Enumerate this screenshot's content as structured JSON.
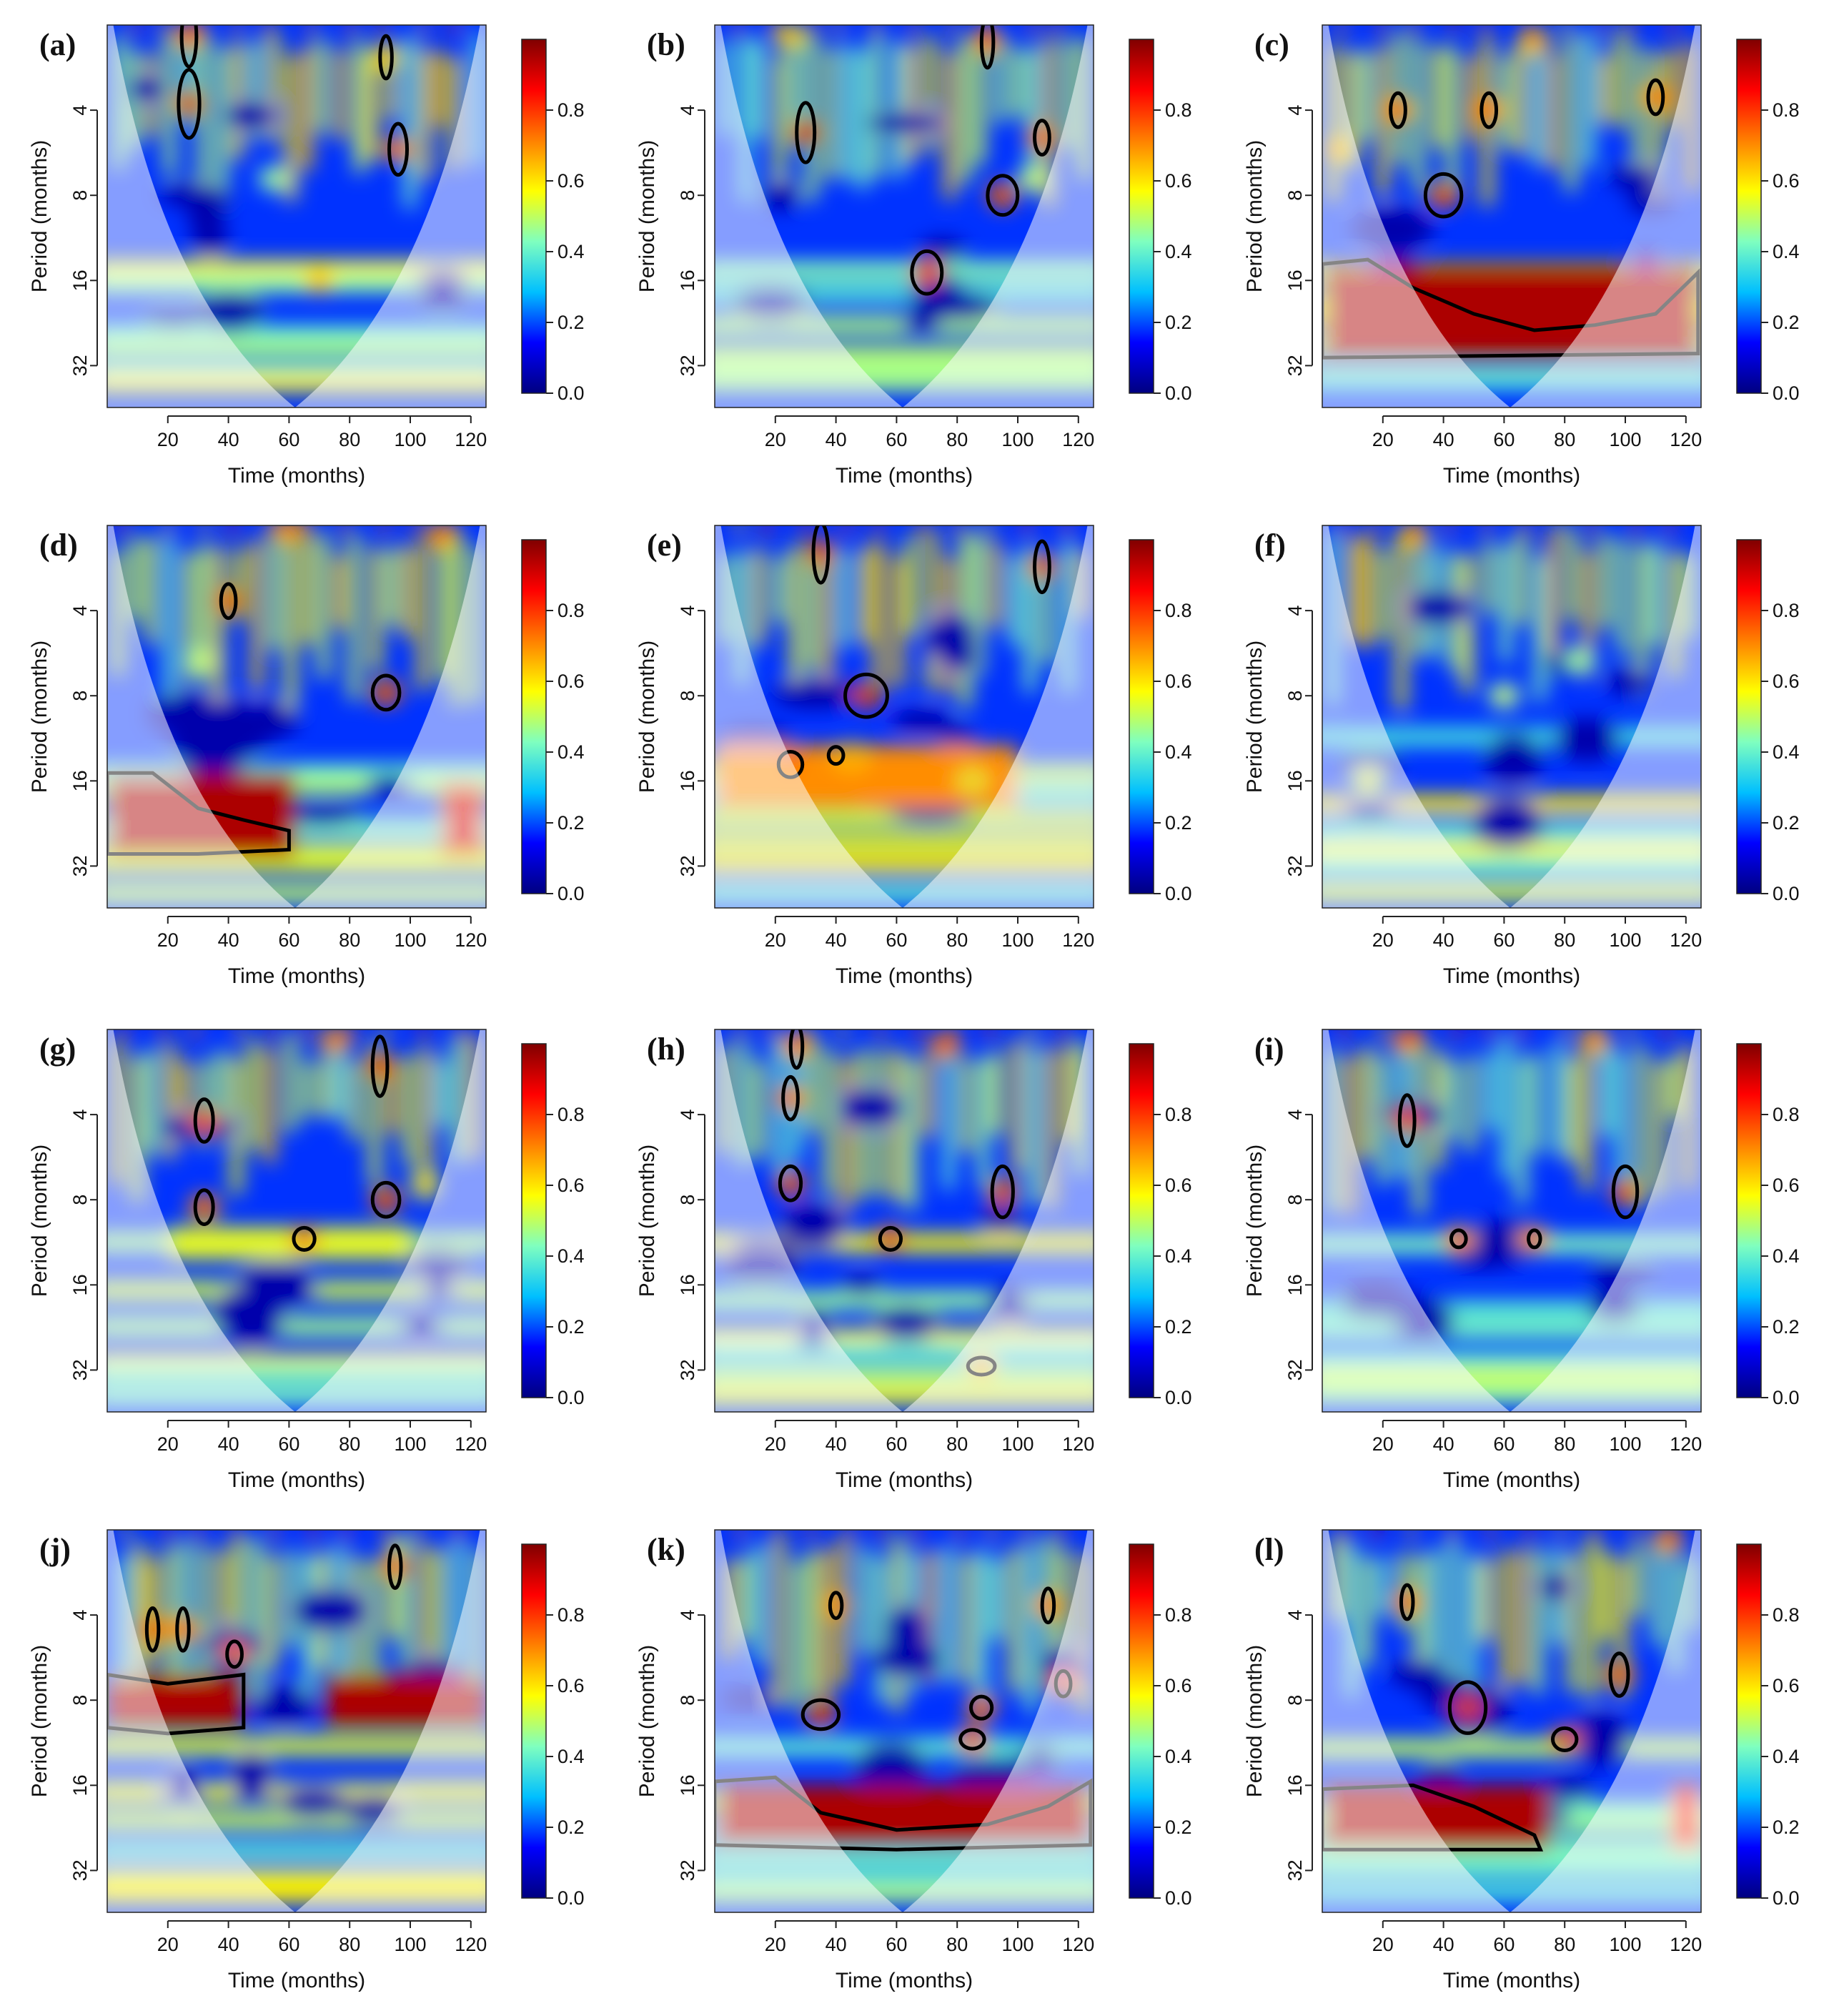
{
  "figure": {
    "panels": [
      {
        "letter": "(a)"
      },
      {
        "letter": "(b)"
      },
      {
        "letter": "(c)"
      },
      {
        "letter": "(d)"
      },
      {
        "letter": "(e)"
      },
      {
        "letter": "(f)"
      },
      {
        "letter": "(g)"
      },
      {
        "letter": "(h)"
      },
      {
        "letter": "(i)"
      },
      {
        "letter": "(j)"
      },
      {
        "letter": "(k)"
      },
      {
        "letter": "(l)"
      }
    ]
  },
  "chart_data": {
    "type": "heatmap",
    "kind": "wavelet coherence",
    "panel_count": 12,
    "layout": "4 rows x 3 columns",
    "xlabel": "Time (months)",
    "ylabel": "Period (months)",
    "xlim": [
      0,
      125
    ],
    "x_ticks": [
      20,
      40,
      60,
      80,
      100,
      120
    ],
    "y_ticks": [
      4,
      8,
      16,
      32
    ],
    "y_scale": "log2",
    "ylim": [
      2,
      45
    ],
    "colorbar_ticks": [
      0.0,
      0.2,
      0.4,
      0.6,
      0.8
    ],
    "colorbar_tick_labels": [
      "0.0",
      "0.2",
      "0.4",
      "0.6",
      "0.8"
    ],
    "colorbar_range": [
      0,
      1
    ],
    "colormap": [
      "#000080",
      "#0000ff",
      "#00bfff",
      "#7fffbf",
      "#ffff00",
      "#ff8000",
      "#ff0000",
      "#800000"
    ],
    "panels": [
      {
        "label": "(a)",
        "blobs": [
          {
            "t": 27,
            "p": 3.8,
            "r": 0.95
          },
          {
            "t": 27,
            "p": 2.2,
            "r": 0.85
          },
          {
            "t": 96,
            "p": 5.5,
            "r": 0.85
          },
          {
            "t": 92,
            "p": 2.6,
            "r": 0.7
          },
          {
            "t": 70,
            "p": 16,
            "r": 0.7
          },
          {
            "t": 55,
            "p": 7,
            "r": 0.5
          }
        ],
        "contours": [
          [
            27,
            3.8,
            5,
            0.35
          ],
          [
            96,
            5.5,
            4,
            0.25
          ],
          [
            92,
            2.6,
            2,
            0.2
          ],
          [
            27,
            2.2,
            3,
            0.3
          ]
        ]
      },
      {
        "label": "(b)",
        "blobs": [
          {
            "t": 30,
            "p": 4.8,
            "r": 0.95
          },
          {
            "t": 70,
            "p": 15,
            "r": 0.9
          },
          {
            "t": 95,
            "p": 8,
            "r": 0.9
          },
          {
            "t": 108,
            "p": 5,
            "r": 0.85
          },
          {
            "t": 90,
            "p": 2.3,
            "r": 0.85
          },
          {
            "t": 25,
            "p": 2.2,
            "r": 0.7
          },
          {
            "t": 105,
            "p": 7,
            "r": 0.55
          }
        ],
        "contours": [
          [
            30,
            4.8,
            4,
            0.3
          ],
          [
            70,
            15,
            8,
            0.2
          ],
          [
            95,
            8,
            8,
            0.18
          ],
          [
            108,
            5,
            3,
            0.15
          ],
          [
            90,
            2.3,
            2,
            0.25
          ]
        ]
      },
      {
        "label": "(c)",
        "blobs": [
          {
            "t": 40,
            "p": 8,
            "r": 0.9
          },
          {
            "t": 25,
            "p": 4,
            "r": 0.85
          },
          {
            "t": 55,
            "p": 4,
            "r": 0.85
          },
          {
            "t": 110,
            "p": 3.6,
            "r": 0.85
          },
          {
            "t": 70,
            "p": 2.3,
            "r": 0.75
          },
          {
            "t": 5,
            "p": 5.5,
            "r": 0.75
          }
        ],
        "bands": [
          {
            "t0": 0,
            "t1": 125,
            "p0": 14,
            "p1": 30,
            "r": 0.95
          }
        ],
        "contours": [
          [
            40,
            8,
            10,
            0.2
          ],
          [
            25,
            4,
            3,
            0.15
          ],
          [
            55,
            4,
            3,
            0.15
          ],
          [
            110,
            3.6,
            3,
            0.15
          ]
        ],
        "band_contour": [
          [
            0,
            14
          ],
          [
            15,
            13.5
          ],
          [
            30,
            17
          ],
          [
            50,
            21
          ],
          [
            70,
            24
          ],
          [
            90,
            23
          ],
          [
            110,
            21
          ],
          [
            124,
            15
          ],
          [
            124,
            29
          ],
          [
            0,
            30
          ]
        ]
      },
      {
        "label": "(d)",
        "blobs": [
          {
            "t": 40,
            "p": 3.7,
            "r": 0.9
          },
          {
            "t": 92,
            "p": 7.8,
            "r": 0.9
          },
          {
            "t": 60,
            "p": 2.1,
            "r": 0.8
          },
          {
            "t": 110,
            "p": 2.2,
            "r": 0.8
          },
          {
            "t": 30,
            "p": 6,
            "r": 0.55
          }
        ],
        "bands": [
          {
            "t0": 0,
            "t1": 62,
            "p0": 15,
            "p1": 30,
            "r": 0.95
          },
          {
            "t0": 110,
            "t1": 125,
            "p0": 16,
            "p1": 30,
            "r": 0.9
          }
        ],
        "contours": [
          [
            40,
            3.7,
            3,
            0.15
          ],
          [
            92,
            7.8,
            7,
            0.15
          ]
        ],
        "band_contour": [
          [
            0,
            15
          ],
          [
            15,
            15
          ],
          [
            30,
            20
          ],
          [
            45,
            22
          ],
          [
            60,
            24
          ],
          [
            60,
            28
          ],
          [
            30,
            29
          ],
          [
            0,
            29
          ]
        ]
      },
      {
        "label": "(e)",
        "blobs": [
          {
            "t": 50,
            "p": 8,
            "r": 0.95
          },
          {
            "t": 35,
            "p": 2.5,
            "r": 0.9
          },
          {
            "t": 108,
            "p": 2.8,
            "r": 0.9
          },
          {
            "t": 25,
            "p": 14,
            "r": 0.85
          },
          {
            "t": 45,
            "p": 13,
            "r": 0.75
          },
          {
            "t": 85,
            "p": 16,
            "r": 0.65
          }
        ],
        "bands": [
          {
            "t0": 0,
            "t1": 100,
            "p0": 12,
            "p1": 20,
            "r": 0.7
          }
        ],
        "contours": [
          [
            50,
            8,
            12,
            0.2
          ],
          [
            35,
            2.5,
            3,
            0.3
          ],
          [
            108,
            2.8,
            3,
            0.25
          ],
          [
            25,
            14,
            6,
            0.1
          ],
          [
            40,
            13,
            3,
            0.05
          ]
        ]
      },
      {
        "label": "(f)",
        "blobs": [
          {
            "t": 60,
            "p": 8,
            "r": 0.55
          },
          {
            "t": 85,
            "p": 6,
            "r": 0.5
          },
          {
            "t": 15,
            "p": 16,
            "r": 0.6
          },
          {
            "t": 30,
            "p": 2.2,
            "r": 0.75
          }
        ],
        "contours": []
      },
      {
        "label": "(g)",
        "blobs": [
          {
            "t": 32,
            "p": 4.2,
            "r": 0.9
          },
          {
            "t": 32,
            "p": 8.5,
            "r": 0.85
          },
          {
            "t": 92,
            "p": 8,
            "r": 0.9
          },
          {
            "t": 90,
            "p": 2.7,
            "r": 0.9
          },
          {
            "t": 65,
            "p": 11,
            "r": 0.8
          },
          {
            "t": 75,
            "p": 2.2,
            "r": 0.8
          },
          {
            "t": 105,
            "p": 7,
            "r": 0.65
          }
        ],
        "bands": [
          {
            "t0": 20,
            "t1": 100,
            "p0": 10,
            "p1": 13,
            "r": 0.55
          }
        ],
        "contours": [
          [
            32,
            4.2,
            4,
            0.2
          ],
          [
            32,
            8.5,
            4,
            0.15
          ],
          [
            92,
            8,
            7,
            0.15
          ],
          [
            90,
            2.7,
            3,
            0.3
          ],
          [
            65,
            11,
            5,
            0.08
          ]
        ]
      },
      {
        "label": "(h)",
        "blobs": [
          {
            "t": 25,
            "p": 7,
            "r": 0.9
          },
          {
            "t": 25,
            "p": 3.5,
            "r": 0.85
          },
          {
            "t": 95,
            "p": 7.5,
            "r": 0.9
          },
          {
            "t": 58,
            "p": 11,
            "r": 0.85
          },
          {
            "t": 27,
            "p": 2.3,
            "r": 0.85
          },
          {
            "t": 76,
            "p": 2.3,
            "r": 0.85
          },
          {
            "t": 88,
            "p": 31,
            "r": 0.75
          }
        ],
        "contours": [
          [
            25,
            7,
            5,
            0.15
          ],
          [
            25,
            3.5,
            3,
            0.2
          ],
          [
            95,
            7.5,
            5,
            0.25
          ],
          [
            58,
            11,
            5,
            0.08
          ],
          [
            27,
            2.3,
            2,
            0.2
          ],
          [
            88,
            31,
            7,
            0.04
          ]
        ]
      },
      {
        "label": "(i)",
        "blobs": [
          {
            "t": 28,
            "p": 4.2,
            "r": 0.9
          },
          {
            "t": 100,
            "p": 7.5,
            "r": 0.9
          },
          {
            "t": 45,
            "p": 11,
            "r": 0.8
          },
          {
            "t": 70,
            "p": 11,
            "r": 0.8
          },
          {
            "t": 28,
            "p": 2.2,
            "r": 0.85
          },
          {
            "t": 90,
            "p": 2.2,
            "r": 0.8
          }
        ],
        "contours": [
          [
            28,
            4.2,
            3,
            0.25
          ],
          [
            100,
            7.5,
            6,
            0.25
          ],
          [
            45,
            11,
            3,
            0.05
          ],
          [
            70,
            11,
            2,
            0.05
          ]
        ]
      },
      {
        "label": "(j)",
        "blobs": [
          {
            "t": 15,
            "p": 4.5,
            "r": 0.9
          },
          {
            "t": 25,
            "p": 4.5,
            "r": 0.85
          },
          {
            "t": 42,
            "p": 5.5,
            "r": 0.85
          },
          {
            "t": 95,
            "p": 2.7,
            "r": 0.85
          }
        ],
        "bands": [
          {
            "t0": 0,
            "t1": 45,
            "p0": 6.5,
            "p1": 10,
            "r": 0.95
          },
          {
            "t0": 72,
            "t1": 125,
            "p0": 6.5,
            "p1": 10,
            "r": 0.95
          }
        ],
        "contours": [
          [
            15,
            4.5,
            2,
            0.2
          ],
          [
            25,
            4.5,
            2,
            0.2
          ],
          [
            42,
            5.5,
            3,
            0.1
          ],
          [
            95,
            2.7,
            2,
            0.2
          ]
        ],
        "band_contour": [
          [
            0,
            6.5
          ],
          [
            20,
            7
          ],
          [
            45,
            6.5
          ],
          [
            45,
            10
          ],
          [
            20,
            10.5
          ],
          [
            0,
            10
          ]
        ]
      },
      {
        "label": "(k)",
        "blobs": [
          {
            "t": 35,
            "p": 9,
            "r": 0.95
          },
          {
            "t": 88,
            "p": 8.5,
            "r": 0.85
          },
          {
            "t": 85,
            "p": 11,
            "r": 0.85
          },
          {
            "t": 110,
            "p": 3.7,
            "r": 0.85
          },
          {
            "t": 40,
            "p": 3.7,
            "r": 0.8
          },
          {
            "t": 115,
            "p": 7,
            "r": 0.85
          }
        ],
        "bands": [
          {
            "t0": 0,
            "t1": 125,
            "p0": 16,
            "p1": 26,
            "r": 0.95
          }
        ],
        "contours": [
          [
            35,
            9,
            10,
            0.12
          ],
          [
            88,
            8.5,
            5,
            0.08
          ],
          [
            85,
            11,
            6,
            0.06
          ],
          [
            110,
            3.7,
            2,
            0.15
          ],
          [
            40,
            3.7,
            2,
            0.1
          ],
          [
            115,
            7,
            3,
            0.1
          ]
        ],
        "band_contour": [
          [
            0,
            15.5
          ],
          [
            20,
            15
          ],
          [
            35,
            20
          ],
          [
            60,
            23
          ],
          [
            90,
            22
          ],
          [
            110,
            19
          ],
          [
            124,
            15.5
          ],
          [
            124,
            26
          ],
          [
            60,
            27
          ],
          [
            0,
            26
          ]
        ]
      },
      {
        "label": "(l)",
        "blobs": [
          {
            "t": 48,
            "p": 8.5,
            "r": 0.95
          },
          {
            "t": 80,
            "p": 11,
            "r": 0.9
          },
          {
            "t": 98,
            "p": 6.5,
            "r": 0.85
          },
          {
            "t": 28,
            "p": 3.6,
            "r": 0.85
          },
          {
            "t": 114,
            "p": 2.2,
            "r": 0.8
          }
        ],
        "bands": [
          {
            "t0": 0,
            "t1": 75,
            "p0": 16,
            "p1": 27,
            "r": 0.95
          },
          {
            "t0": 115,
            "t1": 125,
            "p0": 16,
            "p1": 27,
            "r": 0.85
          }
        ],
        "contours": [
          [
            48,
            8.5,
            10,
            0.25
          ],
          [
            80,
            11,
            6,
            0.08
          ],
          [
            98,
            6.5,
            4,
            0.2
          ],
          [
            28,
            3.6,
            2,
            0.15
          ]
        ],
        "band_contour": [
          [
            0,
            16.5
          ],
          [
            30,
            16
          ],
          [
            50,
            19
          ],
          [
            70,
            24
          ],
          [
            72,
            27
          ],
          [
            30,
            27
          ],
          [
            0,
            27
          ]
        ]
      }
    ]
  }
}
